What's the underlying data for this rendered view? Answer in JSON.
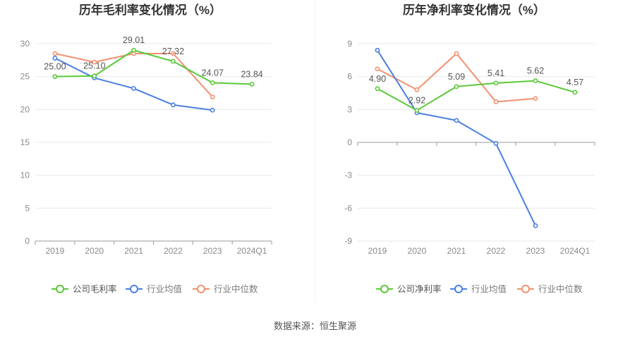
{
  "source": "数据来源：恒生聚源",
  "chart_data": [
    {
      "type": "line",
      "title": "历年毛利率变化情况（%）",
      "categories": [
        "2019",
        "2020",
        "2021",
        "2022",
        "2023",
        "2024Q1"
      ],
      "ylim": [
        0,
        30
      ],
      "yticks": [
        0,
        5,
        10,
        15,
        20,
        25,
        30
      ],
      "ytick_labels": [
        "0",
        "5",
        "10",
        "15",
        "20",
        "25",
        "30"
      ],
      "grid": true,
      "legend_position": "bottom",
      "series": [
        {
          "name": "公司毛利率",
          "color": "#5cc93a",
          "values": [
            25.0,
            25.1,
            29.01,
            27.32,
            24.07,
            23.84
          ],
          "labels": [
            "25.00",
            "25.10",
            "29.01",
            "27.32",
            "24.07",
            "23.84"
          ]
        },
        {
          "name": "行业均值",
          "color": "#4a7fe0",
          "values": [
            27.8,
            24.8,
            23.2,
            20.7,
            19.9,
            null
          ]
        },
        {
          "name": "行业中位数",
          "color": "#f29070",
          "values": [
            28.5,
            27.2,
            28.5,
            28.5,
            21.9,
            null
          ]
        }
      ]
    },
    {
      "type": "line",
      "title": "历年净利率变化情况（%）",
      "categories": [
        "2019",
        "2020",
        "2021",
        "2022",
        "2023",
        "2024Q1"
      ],
      "ylim": [
        -9,
        9
      ],
      "yticks": [
        -9,
        -6,
        -3,
        0,
        3,
        6,
        9
      ],
      "ytick_labels": [
        "-9",
        "-6",
        "-3",
        "0",
        "3",
        "6",
        "9"
      ],
      "grid": true,
      "legend_position": "bottom",
      "series": [
        {
          "name": "公司净利率",
          "color": "#5cc93a",
          "values": [
            4.9,
            2.92,
            5.09,
            5.41,
            5.62,
            4.57
          ],
          "labels": [
            "4.90",
            "2.92",
            "5.09",
            "5.41",
            "5.62",
            "4.57"
          ]
        },
        {
          "name": "行业均值",
          "color": "#4a7fe0",
          "values": [
            8.4,
            2.7,
            2.0,
            -0.1,
            -7.6,
            null
          ]
        },
        {
          "name": "行业中位数",
          "color": "#f29070",
          "values": [
            6.7,
            4.8,
            8.1,
            3.7,
            4.0,
            null
          ]
        }
      ]
    }
  ]
}
